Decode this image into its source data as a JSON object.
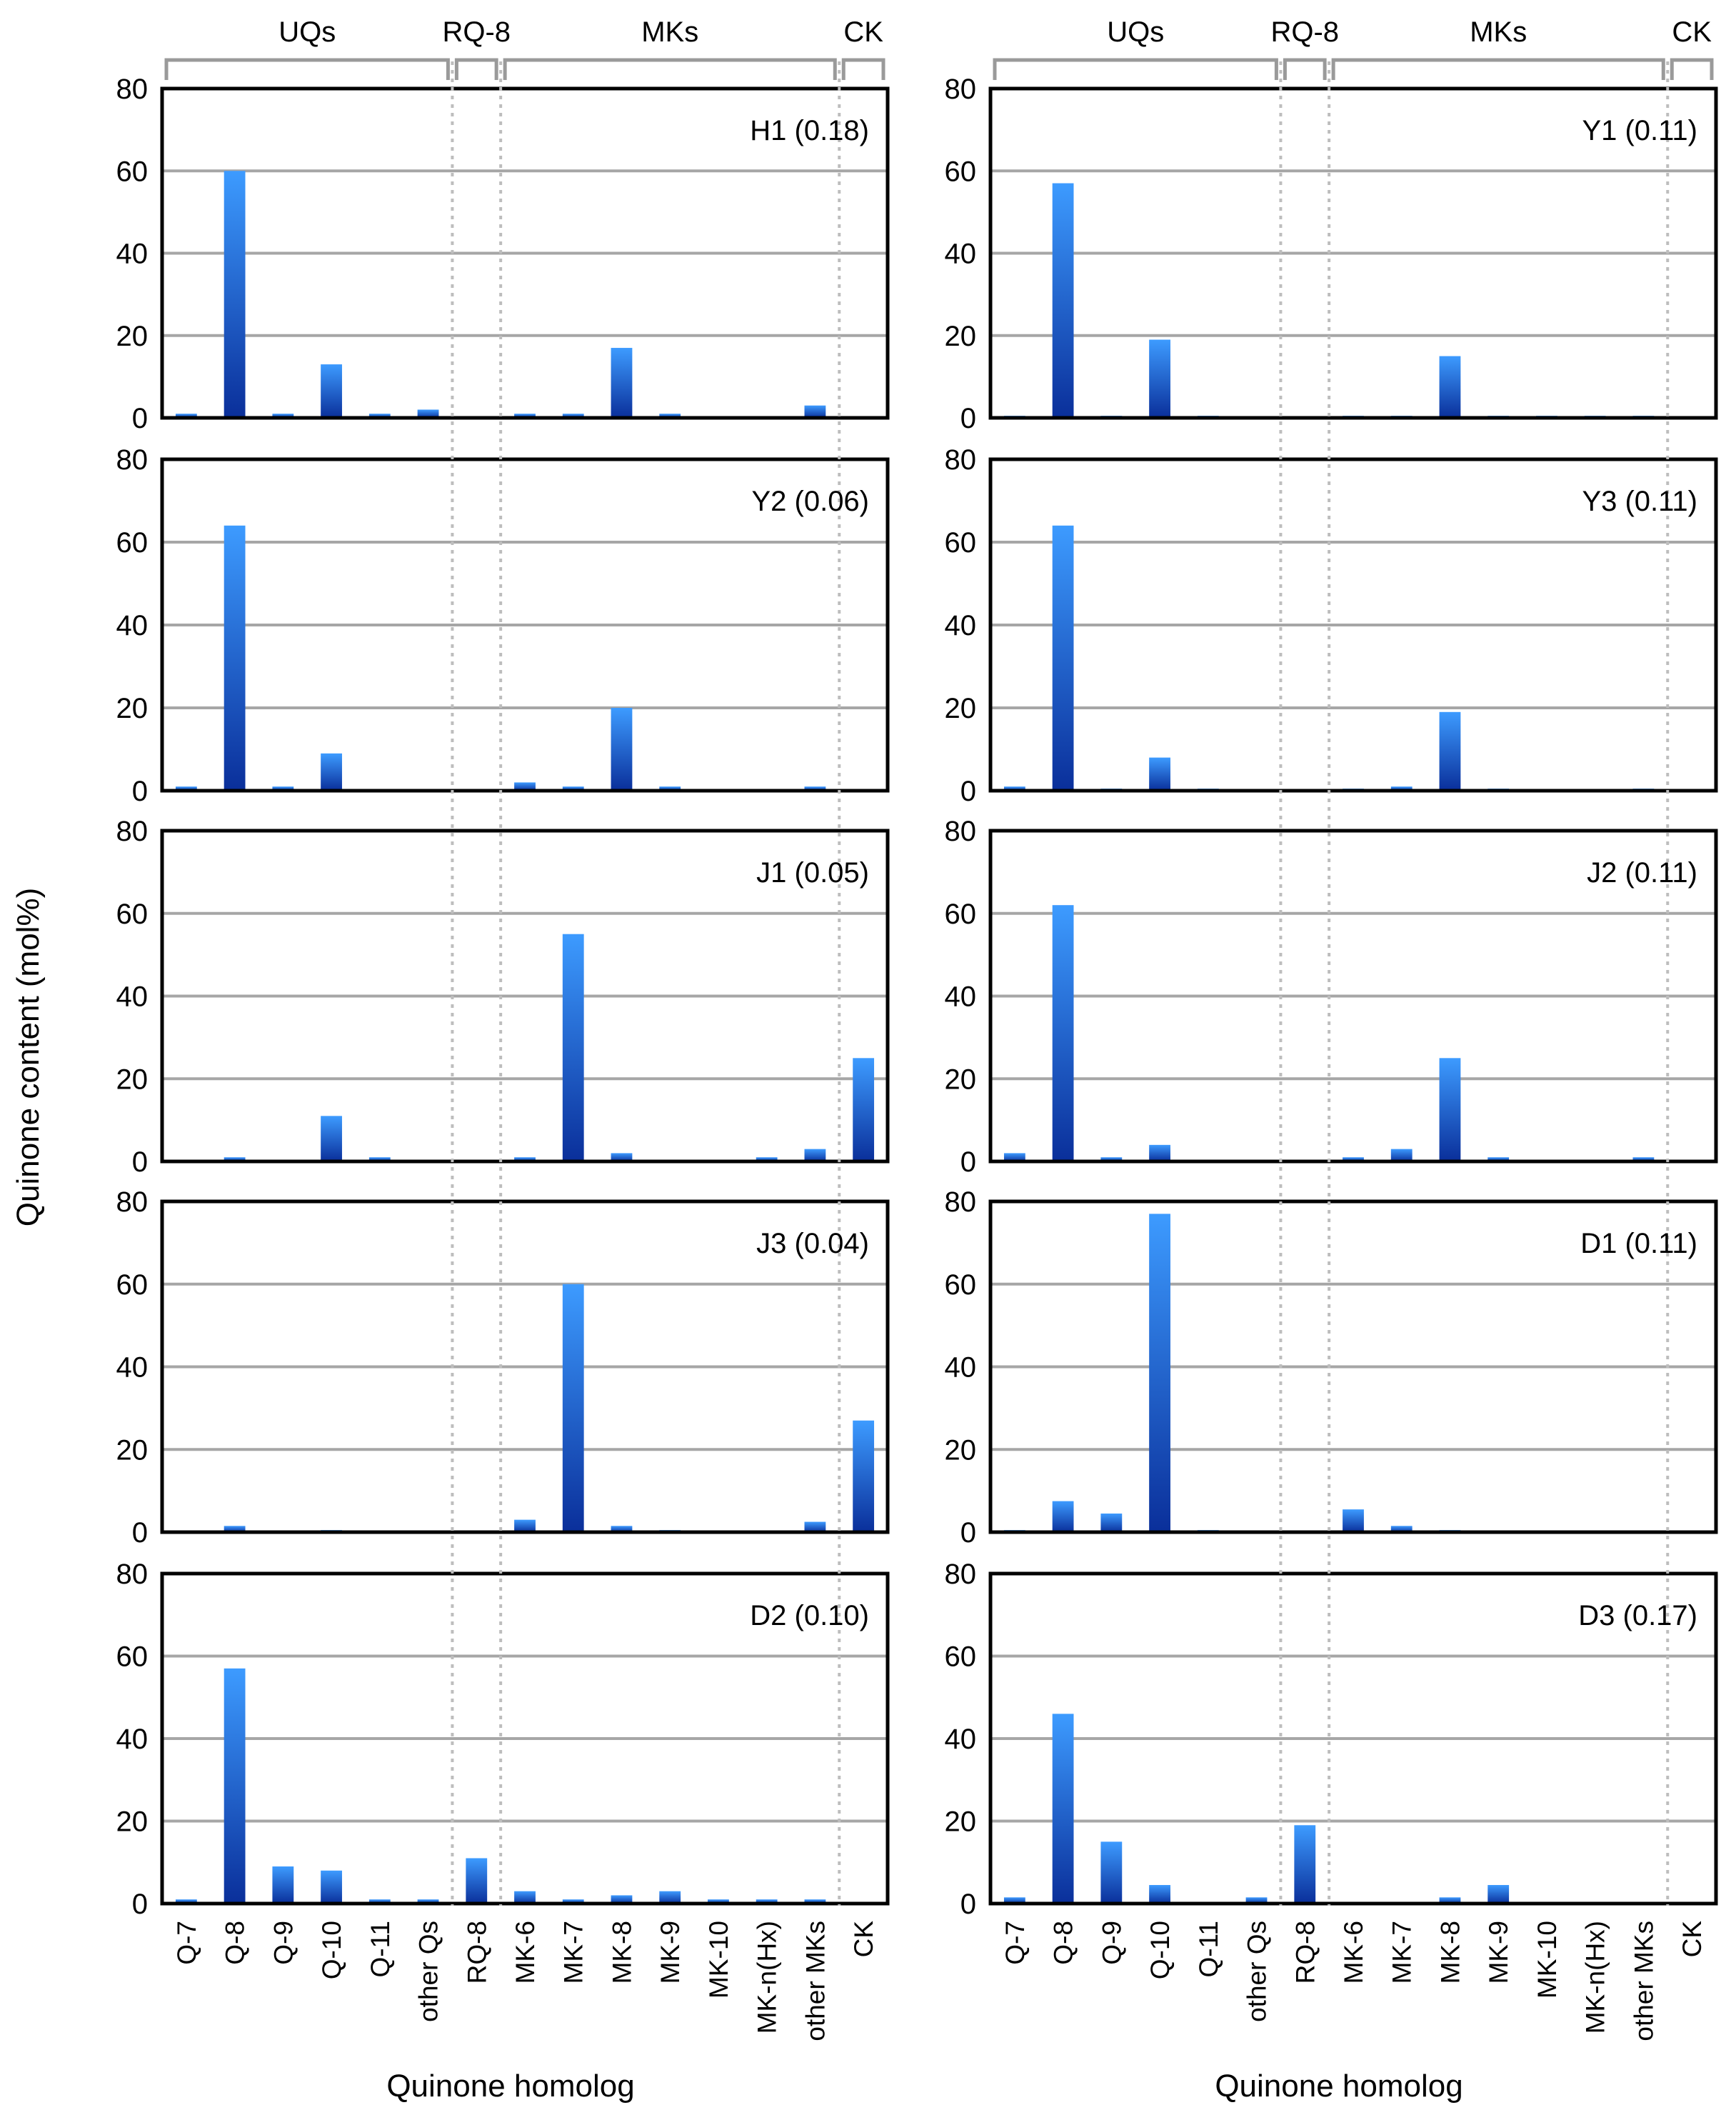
{
  "colors": {
    "bar_top": "#3d9bff",
    "bar_bottom": "#0a2f9a",
    "grid": "#a6a6a6",
    "frame": "#000000",
    "separator": "#bdbdbd",
    "bracket": "#9a9a9a"
  },
  "labels": {
    "ylabel": "Quinone content (mol%)",
    "xlabel_left": "Quinone homolog",
    "xlabel_right": "Quinone homolog"
  },
  "groups": [
    {
      "label": "UQs",
      "from": "Q-7",
      "to": "other Qs"
    },
    {
      "label": "RQ-8",
      "from": "RQ-8",
      "to": "RQ-8"
    },
    {
      "label": "MKs",
      "from": "MK-6",
      "to": "other MKs"
    },
    {
      "label": "CK",
      "from": "CK",
      "to": "CK"
    }
  ],
  "chart_data": [
    {
      "type": "bar",
      "title": "H1 (0.18)",
      "categories": [
        "Q-7",
        "Q-8",
        "Q-9",
        "Q-10",
        "Q-11",
        "other Qs",
        "RQ-8",
        "MK-6",
        "MK-7",
        "MK-8",
        "MK-9",
        "MK-10",
        "MK-n(Hx)",
        "other MKs",
        "CK"
      ],
      "values": [
        1,
        60,
        1,
        13,
        1,
        2,
        0,
        1,
        1,
        17,
        1,
        0,
        0,
        3,
        0
      ],
      "ylim": [
        0,
        80
      ],
      "yticks": [
        0,
        20,
        40,
        60,
        80
      ],
      "grid": true
    },
    {
      "type": "bar",
      "title": "Y1 (0.11)",
      "categories": [
        "Q-7",
        "Q-8",
        "Q-9",
        "Q-10",
        "Q-11",
        "other Qs",
        "RQ-8",
        "MK-6",
        "MK-7",
        "MK-8",
        "MK-9",
        "MK-10",
        "MK-n(Hx)",
        "other MKs",
        "CK"
      ],
      "values": [
        0.5,
        57,
        0.5,
        19,
        0.5,
        0,
        0,
        0.5,
        0.5,
        15,
        0.5,
        0.5,
        0.5,
        0.5,
        0
      ],
      "ylim": [
        0,
        80
      ],
      "yticks": [
        0,
        20,
        40,
        60,
        80
      ],
      "grid": true
    },
    {
      "type": "bar",
      "title": "Y2 (0.06)",
      "categories": [
        "Q-7",
        "Q-8",
        "Q-9",
        "Q-10",
        "Q-11",
        "other Qs",
        "RQ-8",
        "MK-6",
        "MK-7",
        "MK-8",
        "MK-9",
        "MK-10",
        "MK-n(Hx)",
        "other MKs",
        "CK"
      ],
      "values": [
        1,
        64,
        1,
        9,
        0,
        0,
        0,
        2,
        1,
        20,
        1,
        0,
        0,
        1,
        0
      ],
      "ylim": [
        0,
        80
      ],
      "yticks": [
        0,
        20,
        40,
        60,
        80
      ],
      "grid": true
    },
    {
      "type": "bar",
      "title": "Y3 (0.11)",
      "categories": [
        "Q-7",
        "Q-8",
        "Q-9",
        "Q-10",
        "Q-11",
        "other Qs",
        "RQ-8",
        "MK-6",
        "MK-7",
        "MK-8",
        "MK-9",
        "MK-10",
        "MK-n(Hx)",
        "other MKs",
        "CK"
      ],
      "values": [
        1,
        64,
        0.5,
        8,
        0.5,
        0,
        0,
        0.5,
        1,
        19,
        0.5,
        0,
        0,
        0.5,
        0
      ],
      "ylim": [
        0,
        80
      ],
      "yticks": [
        0,
        20,
        40,
        60,
        80
      ],
      "grid": true
    },
    {
      "type": "bar",
      "title": "J1 (0.05)",
      "categories": [
        "Q-7",
        "Q-8",
        "Q-9",
        "Q-10",
        "Q-11",
        "other Qs",
        "RQ-8",
        "MK-6",
        "MK-7",
        "MK-8",
        "MK-9",
        "MK-10",
        "MK-n(Hx)",
        "other MKs",
        "CK"
      ],
      "values": [
        0,
        1,
        0,
        11,
        1,
        0,
        0,
        1,
        55,
        2,
        0,
        0,
        1,
        3,
        25
      ],
      "ylim": [
        0,
        80
      ],
      "yticks": [
        0,
        20,
        40,
        60,
        80
      ],
      "grid": true
    },
    {
      "type": "bar",
      "title": "J2 (0.11)",
      "categories": [
        "Q-7",
        "Q-8",
        "Q-9",
        "Q-10",
        "Q-11",
        "other Qs",
        "RQ-8",
        "MK-6",
        "MK-7",
        "MK-8",
        "MK-9",
        "MK-10",
        "MK-n(Hx)",
        "other MKs",
        "CK"
      ],
      "values": [
        2,
        62,
        1,
        4,
        0,
        0,
        0,
        1,
        3,
        25,
        1,
        0,
        0,
        1,
        0
      ],
      "ylim": [
        0,
        80
      ],
      "yticks": [
        0,
        20,
        40,
        60,
        80
      ],
      "grid": true
    },
    {
      "type": "bar",
      "title": "J3 (0.04)",
      "categories": [
        "Q-7",
        "Q-8",
        "Q-9",
        "Q-10",
        "Q-11",
        "other Qs",
        "RQ-8",
        "MK-6",
        "MK-7",
        "MK-8",
        "MK-9",
        "MK-10",
        "MK-n(Hx)",
        "other MKs",
        "CK"
      ],
      "values": [
        0,
        1.5,
        0,
        0.5,
        0,
        0,
        0,
        3,
        60,
        1.5,
        0.5,
        0,
        0,
        2.5,
        27
      ],
      "ylim": [
        0,
        80
      ],
      "yticks": [
        0,
        20,
        40,
        60,
        80
      ],
      "grid": true
    },
    {
      "type": "bar",
      "title": "D1 (0.11)",
      "categories": [
        "Q-7",
        "Q-8",
        "Q-9",
        "Q-10",
        "Q-11",
        "other Qs",
        "RQ-8",
        "MK-6",
        "MK-7",
        "MK-8",
        "MK-9",
        "MK-10",
        "MK-n(Hx)",
        "other MKs",
        "CK"
      ],
      "values": [
        0.5,
        7.5,
        4.5,
        77,
        0.5,
        0,
        0,
        5.5,
        1.5,
        0.5,
        0,
        0,
        0,
        0,
        0
      ],
      "ylim": [
        0,
        80
      ],
      "yticks": [
        0,
        20,
        40,
        60,
        80
      ],
      "grid": true
    },
    {
      "type": "bar",
      "title": "D2 (0.10)",
      "categories": [
        "Q-7",
        "Q-8",
        "Q-9",
        "Q-10",
        "Q-11",
        "other Qs",
        "RQ-8",
        "MK-6",
        "MK-7",
        "MK-8",
        "MK-9",
        "MK-10",
        "MK-n(Hx)",
        "other MKs",
        "CK"
      ],
      "values": [
        1,
        57,
        9,
        8,
        1,
        1,
        11,
        3,
        1,
        2,
        3,
        1,
        1,
        1,
        0
      ],
      "ylim": [
        0,
        80
      ],
      "yticks": [
        0,
        20,
        40,
        60,
        80
      ],
      "grid": true
    },
    {
      "type": "bar",
      "title": "D3 (0.17)",
      "categories": [
        "Q-7",
        "Q-8",
        "Q-9",
        "Q-10",
        "Q-11",
        "other Qs",
        "RQ-8",
        "MK-6",
        "MK-7",
        "MK-8",
        "MK-9",
        "MK-10",
        "MK-n(Hx)",
        "other MKs",
        "CK"
      ],
      "values": [
        1.5,
        46,
        15,
        4.5,
        0,
        1.5,
        19,
        0,
        0,
        1.5,
        4.5,
        0,
        0,
        0,
        0
      ],
      "ylim": [
        0,
        80
      ],
      "yticks": [
        0,
        20,
        40,
        60,
        80
      ],
      "grid": true
    }
  ]
}
